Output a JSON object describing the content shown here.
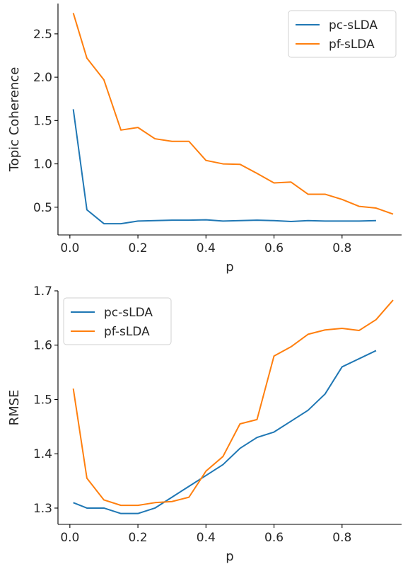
{
  "chart_data": [
    {
      "type": "line",
      "xlabel": "p",
      "ylabel": "Topic Coherence",
      "xlim": [
        -0.035,
        0.975
      ],
      "ylim": [
        0.18,
        2.85
      ],
      "xticks": [
        0.0,
        0.2,
        0.4,
        0.6,
        0.8
      ],
      "xtick_labels": [
        "0.0",
        "0.2",
        "0.4",
        "0.6",
        "0.8"
      ],
      "yticks": [
        0.5,
        1.0,
        1.5,
        2.0,
        2.5
      ],
      "ytick_labels": [
        "0.5",
        "1.0",
        "1.5",
        "2.0",
        "2.5"
      ],
      "legend_position": "top-right",
      "series": [
        {
          "name": "pc-sLDA",
          "color": "#1f77b4",
          "x": [
            0.01,
            0.05,
            0.1,
            0.15,
            0.2,
            0.25,
            0.3,
            0.35,
            0.4,
            0.45,
            0.5,
            0.55,
            0.6,
            0.65,
            0.7,
            0.75,
            0.8,
            0.85,
            0.9
          ],
          "values": [
            1.63,
            0.47,
            0.31,
            0.31,
            0.34,
            0.345,
            0.35,
            0.35,
            0.355,
            0.34,
            0.345,
            0.35,
            0.345,
            0.335,
            0.345,
            0.34,
            0.34,
            0.34,
            0.345
          ]
        },
        {
          "name": "pf-sLDA",
          "color": "#ff7f0e",
          "x": [
            0.01,
            0.05,
            0.1,
            0.15,
            0.2,
            0.25,
            0.3,
            0.35,
            0.4,
            0.45,
            0.5,
            0.55,
            0.6,
            0.65,
            0.7,
            0.75,
            0.8,
            0.85,
            0.9,
            0.95
          ],
          "values": [
            2.74,
            2.22,
            1.97,
            1.39,
            1.42,
            1.29,
            1.26,
            1.26,
            1.04,
            1.0,
            0.995,
            0.89,
            0.78,
            0.79,
            0.65,
            0.65,
            0.59,
            0.51,
            0.49,
            0.42
          ]
        }
      ]
    },
    {
      "type": "line",
      "xlabel": "p",
      "ylabel": "RMSE",
      "xlim": [
        -0.035,
        0.975
      ],
      "ylim": [
        1.27,
        1.7
      ],
      "xticks": [
        0.0,
        0.2,
        0.4,
        0.6,
        0.8
      ],
      "xtick_labels": [
        "0.0",
        "0.2",
        "0.4",
        "0.6",
        "0.8"
      ],
      "yticks": [
        1.3,
        1.4,
        1.5,
        1.6,
        1.7
      ],
      "ytick_labels": [
        "1.3",
        "1.4",
        "1.5",
        "1.6",
        "1.7"
      ],
      "legend_position": "top-left",
      "series": [
        {
          "name": "pc-sLDA",
          "color": "#1f77b4",
          "x": [
            0.01,
            0.05,
            0.1,
            0.15,
            0.2,
            0.25,
            0.3,
            0.35,
            0.4,
            0.45,
            0.5,
            0.55,
            0.6,
            0.65,
            0.7,
            0.75,
            0.8,
            0.85,
            0.9
          ],
          "values": [
            1.31,
            1.3,
            1.3,
            1.29,
            1.29,
            1.3,
            1.32,
            1.34,
            1.36,
            1.38,
            1.41,
            1.43,
            1.44,
            1.46,
            1.48,
            1.51,
            1.56,
            1.575,
            1.59
          ]
        },
        {
          "name": "pf-sLDA",
          "color": "#ff7f0e",
          "x": [
            0.01,
            0.05,
            0.1,
            0.15,
            0.2,
            0.25,
            0.3,
            0.35,
            0.4,
            0.45,
            0.5,
            0.55,
            0.6,
            0.65,
            0.7,
            0.75,
            0.8,
            0.85,
            0.9,
            0.95
          ],
          "values": [
            1.52,
            1.355,
            1.315,
            1.305,
            1.305,
            1.31,
            1.312,
            1.32,
            1.368,
            1.395,
            1.455,
            1.463,
            1.58,
            1.597,
            1.62,
            1.628,
            1.631,
            1.627,
            1.647,
            1.683
          ]
        }
      ]
    }
  ]
}
